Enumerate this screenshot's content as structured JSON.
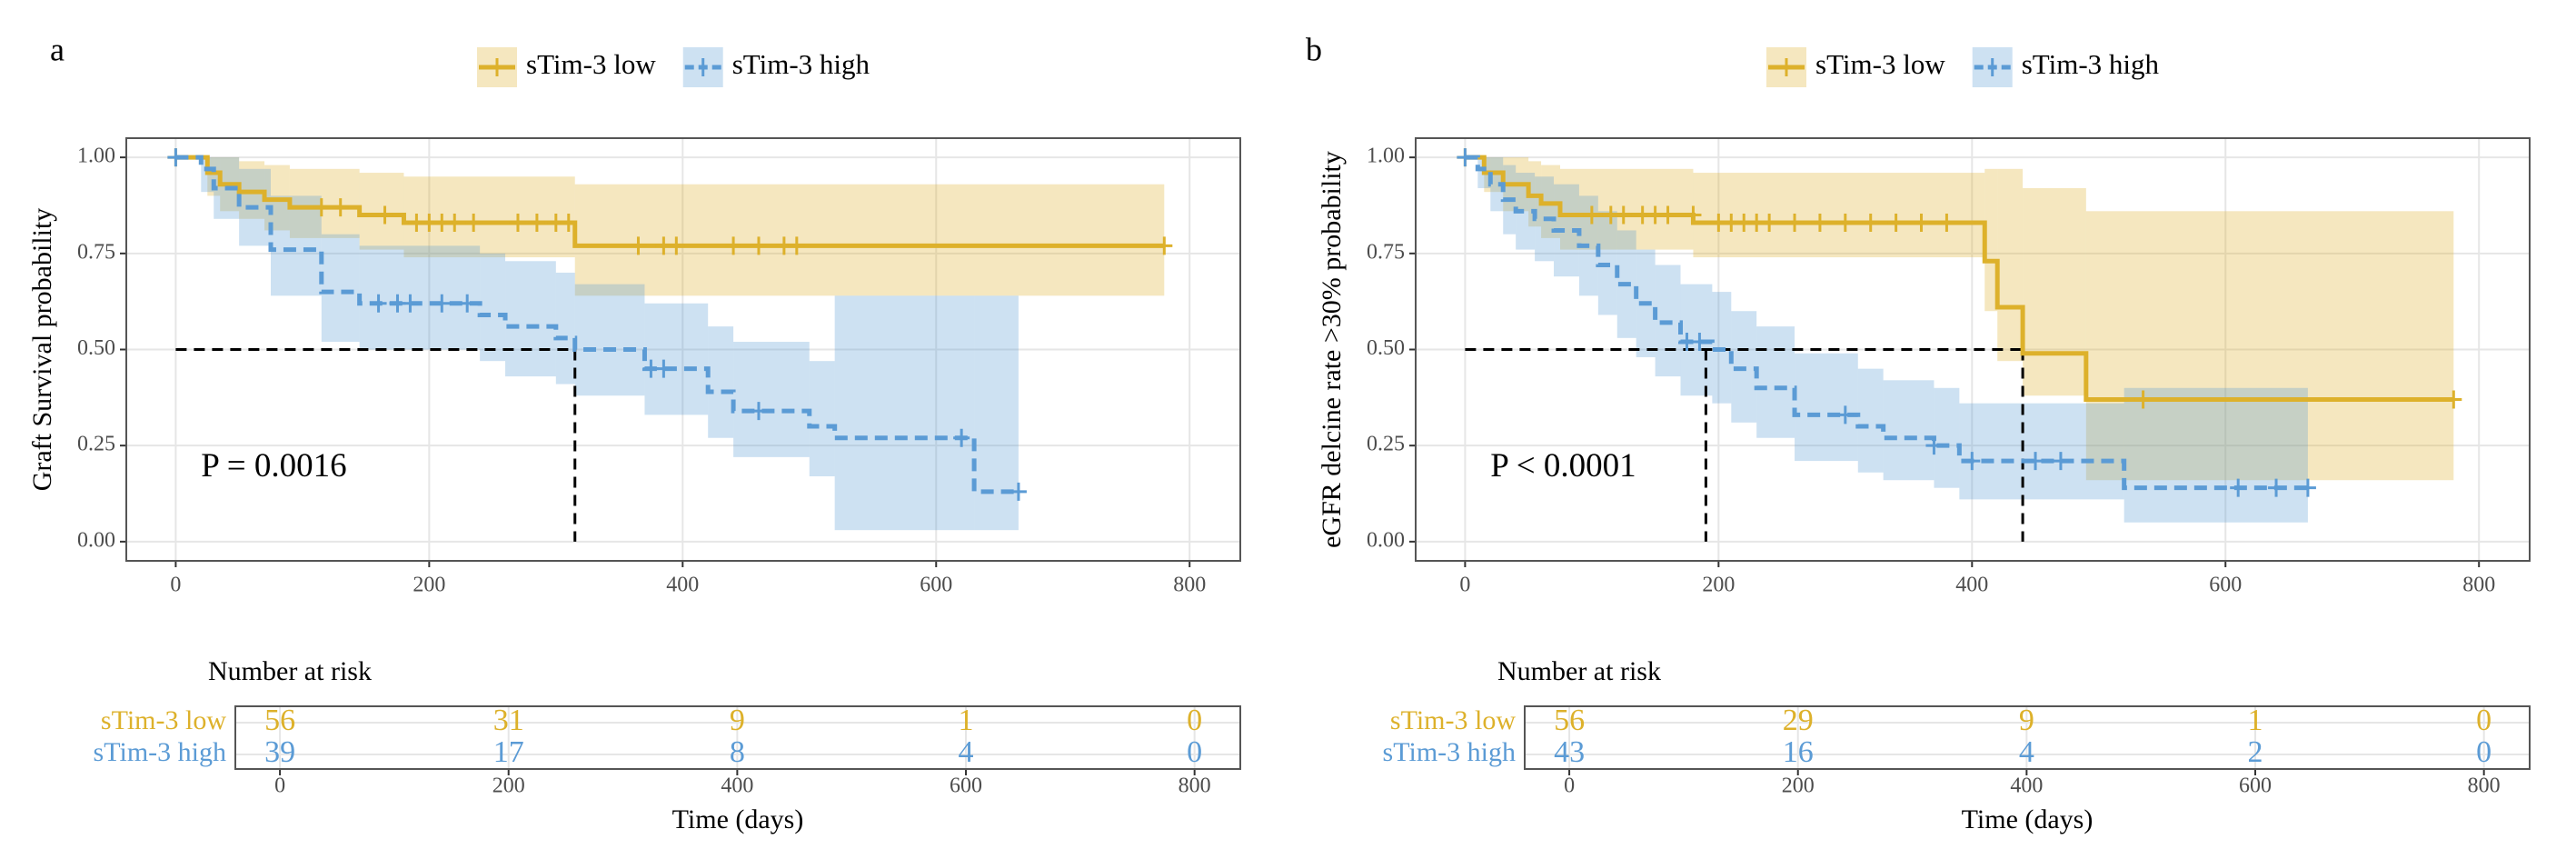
{
  "chart_data": [
    {
      "type": "km",
      "panel_label": "a",
      "ylabel": "Graft Survival probability",
      "xlabel": "Time (days)",
      "legend_position": "top",
      "grid": true,
      "xlim": [
        -39,
        840
      ],
      "ylim": [
        -0.05,
        1.05
      ],
      "xticks": [
        0,
        200,
        400,
        600,
        800
      ],
      "yticks": [
        {
          "value": 0,
          "label": "0.00"
        },
        {
          "value": 0.25,
          "label": "0.25"
        },
        {
          "value": 0.5,
          "label": "0.50"
        },
        {
          "value": 0.75,
          "label": "0.75"
        },
        {
          "value": 1,
          "label": "1.00"
        }
      ],
      "annotation": "P = 0.0016",
      "median_y": 0.5,
      "median_x": [
        315
      ],
      "risk_table": {
        "title": "Number at risk"
      },
      "series": [
        {
          "name": "sTim-3 low",
          "color": "#DDB12B",
          "linestyle": "solid",
          "x": [
            0,
            25,
            35,
            50,
            70,
            90,
            145,
            180,
            315,
            780
          ],
          "values": [
            1,
            0.96,
            0.93,
            0.91,
            0.89,
            0.87,
            0.85,
            0.83,
            0.77,
            0.77
          ],
          "upper": [
            1,
            1,
            1,
            0.99,
            0.98,
            0.97,
            0.96,
            0.95,
            0.93,
            0.93
          ],
          "lower": [
            1,
            0.9,
            0.86,
            0.84,
            0.81,
            0.79,
            0.76,
            0.74,
            0.64,
            0.64
          ],
          "censor_x": [
            0,
            115,
            130,
            165,
            190,
            200,
            210,
            220,
            235,
            270,
            285,
            300,
            310,
            365,
            385,
            395,
            440,
            460,
            480,
            490,
            780
          ],
          "censor_y": [
            1,
            0.87,
            0.87,
            0.85,
            0.83,
            0.83,
            0.83,
            0.83,
            0.83,
            0.83,
            0.83,
            0.83,
            0.83,
            0.77,
            0.77,
            0.77,
            0.77,
            0.77,
            0.77,
            0.77,
            0.77
          ],
          "at_risk": [
            56,
            31,
            9,
            1,
            0
          ]
        },
        {
          "name": "sTim-3 high",
          "color": "#5B9BD5",
          "linestyle": "dashed",
          "x": [
            0,
            20,
            30,
            50,
            75,
            115,
            145,
            240,
            260,
            300,
            315,
            370,
            420,
            440,
            500,
            520,
            630,
            665
          ],
          "values": [
            1,
            0.97,
            0.92,
            0.87,
            0.76,
            0.65,
            0.62,
            0.59,
            0.56,
            0.53,
            0.5,
            0.45,
            0.39,
            0.34,
            0.3,
            0.27,
            0.13,
            0.13
          ],
          "upper": [
            1,
            1,
            1,
            0.97,
            0.9,
            0.8,
            0.77,
            0.75,
            0.73,
            0.7,
            0.67,
            0.62,
            0.56,
            0.52,
            0.47,
            0.64,
            0.64,
            0.64
          ],
          "lower": [
            1,
            0.91,
            0.84,
            0.77,
            0.64,
            0.52,
            0.5,
            0.47,
            0.43,
            0.41,
            0.38,
            0.33,
            0.27,
            0.22,
            0.17,
            0.03,
            0.03,
            0.03
          ],
          "censor_x": [
            0,
            160,
            175,
            185,
            210,
            230,
            375,
            385,
            460,
            620,
            665
          ],
          "censor_y": [
            1,
            0.62,
            0.62,
            0.62,
            0.62,
            0.62,
            0.45,
            0.45,
            0.34,
            0.27,
            0.13
          ],
          "at_risk": [
            39,
            17,
            8,
            4,
            0
          ]
        }
      ]
    },
    {
      "type": "km",
      "panel_label": "b",
      "ylabel": "eGFR delcine rate >30% probability",
      "xlabel": "Time (days)",
      "legend_position": "top",
      "grid": true,
      "xlim": [
        -39,
        840
      ],
      "ylim": [
        -0.05,
        1.05
      ],
      "xticks": [
        0,
        200,
        400,
        600,
        800
      ],
      "yticks": [
        {
          "value": 0,
          "label": "0.00"
        },
        {
          "value": 0.25,
          "label": "0.25"
        },
        {
          "value": 0.5,
          "label": "0.50"
        },
        {
          "value": 0.75,
          "label": "0.75"
        },
        {
          "value": 1,
          "label": "1.00"
        }
      ],
      "annotation": "P < 0.0001",
      "median_y": 0.5,
      "median_x": [
        190,
        440
      ],
      "risk_table": {
        "title": "Number at risk"
      },
      "series": [
        {
          "name": "sTim-3 low",
          "color": "#DDB12B",
          "linestyle": "solid",
          "x": [
            0,
            15,
            30,
            50,
            60,
            75,
            180,
            410,
            420,
            440,
            490,
            780
          ],
          "values": [
            1,
            0.96,
            0.93,
            0.9,
            0.88,
            0.85,
            0.83,
            0.73,
            0.61,
            0.49,
            0.37,
            0.37
          ],
          "upper": [
            1,
            1,
            1,
            0.99,
            0.98,
            0.97,
            0.96,
            0.97,
            0.97,
            0.92,
            0.86,
            0.86
          ],
          "lower": [
            1,
            0.91,
            0.86,
            0.82,
            0.79,
            0.76,
            0.74,
            0.6,
            0.47,
            0.38,
            0.16,
            0.16
          ],
          "censor_x": [
            0,
            100,
            115,
            125,
            140,
            150,
            160,
            180,
            200,
            210,
            220,
            230,
            240,
            260,
            280,
            300,
            320,
            340,
            360,
            380,
            535,
            780
          ],
          "censor_y": [
            1,
            0.85,
            0.85,
            0.85,
            0.85,
            0.85,
            0.85,
            0.85,
            0.83,
            0.83,
            0.83,
            0.83,
            0.83,
            0.83,
            0.83,
            0.83,
            0.83,
            0.83,
            0.83,
            0.83,
            0.37,
            0.37
          ],
          "at_risk": [
            56,
            29,
            9,
            1,
            0
          ]
        },
        {
          "name": "sTim-3 high",
          "color": "#5B9BD5",
          "linestyle": "dashed",
          "x": [
            0,
            10,
            20,
            30,
            40,
            55,
            70,
            90,
            105,
            120,
            135,
            150,
            170,
            195,
            210,
            230,
            260,
            310,
            330,
            370,
            390,
            520,
            665
          ],
          "values": [
            1,
            0.97,
            0.93,
            0.89,
            0.86,
            0.84,
            0.81,
            0.77,
            0.72,
            0.67,
            0.62,
            0.57,
            0.52,
            0.5,
            0.45,
            0.4,
            0.33,
            0.3,
            0.27,
            0.25,
            0.21,
            0.14,
            0.14
          ],
          "upper": [
            1,
            1,
            1,
            0.98,
            0.96,
            0.95,
            0.93,
            0.9,
            0.86,
            0.81,
            0.76,
            0.72,
            0.67,
            0.65,
            0.6,
            0.56,
            0.49,
            0.45,
            0.42,
            0.4,
            0.36,
            0.4,
            0.4
          ],
          "lower": [
            1,
            0.92,
            0.86,
            0.8,
            0.76,
            0.73,
            0.69,
            0.64,
            0.59,
            0.53,
            0.48,
            0.43,
            0.38,
            0.36,
            0.31,
            0.27,
            0.21,
            0.18,
            0.16,
            0.14,
            0.11,
            0.05,
            0.05
          ],
          "censor_x": [
            0,
            175,
            185,
            300,
            370,
            400,
            450,
            470,
            610,
            640,
            665
          ],
          "censor_y": [
            1,
            0.52,
            0.52,
            0.33,
            0.25,
            0.21,
            0.21,
            0.21,
            0.14,
            0.14,
            0.14
          ],
          "at_risk": [
            43,
            16,
            4,
            2,
            0
          ]
        }
      ]
    }
  ]
}
